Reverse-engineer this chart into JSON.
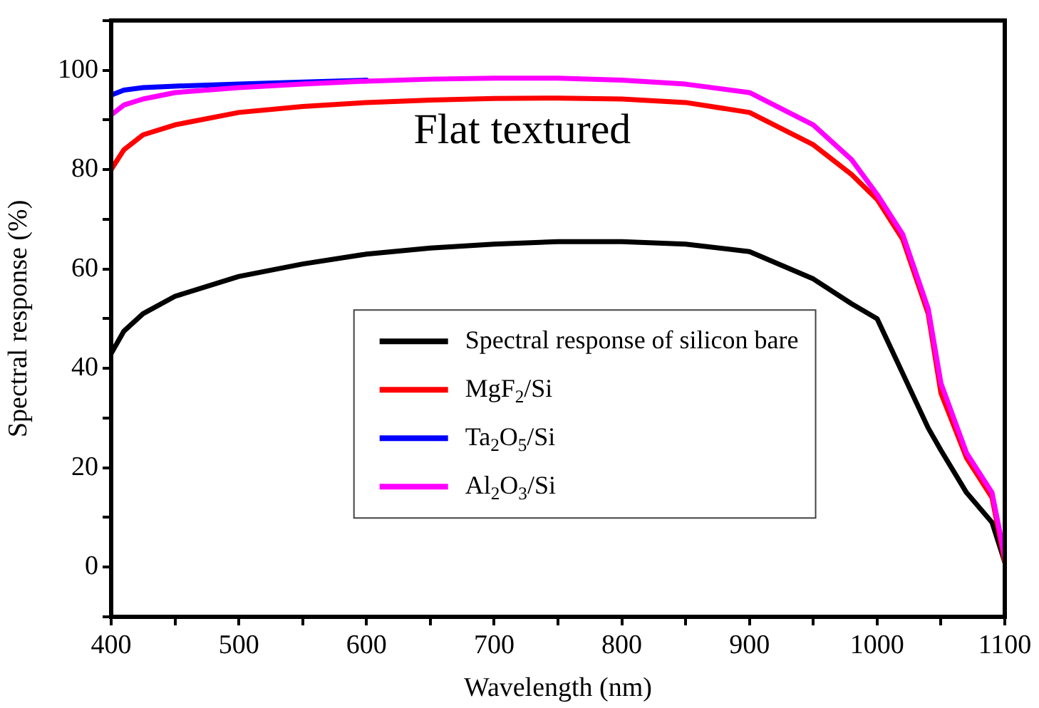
{
  "chart_data": {
    "type": "line",
    "xlabel": "Wavelength (nm)",
    "ylabel": "Spectral response (%)",
    "annotations": [
      "Flat textured"
    ],
    "xlim": [
      400,
      1100
    ],
    "ylim": [
      -10,
      110
    ],
    "xticks": [
      400,
      {
        "value": 450,
        "label": null
      },
      500,
      {
        "value": 550,
        "label": null
      },
      600,
      {
        "value": 650,
        "label": null
      },
      700,
      {
        "value": 750,
        "label": null
      },
      800,
      {
        "value": 850,
        "label": null
      },
      900,
      {
        "value": 950,
        "label": null
      },
      1000,
      {
        "value": 1050,
        "label": null
      },
      1100
    ],
    "yticks": [
      {
        "value": -10,
        "label": null
      },
      0,
      {
        "value": 10,
        "label": null
      },
      20,
      {
        "value": 30,
        "label": null
      },
      40,
      {
        "value": 50,
        "label": null
      },
      60,
      {
        "value": 70,
        "label": null
      },
      80,
      {
        "value": 90,
        "label": null
      },
      100,
      {
        "value": 110,
        "label": null
      }
    ],
    "grid": false,
    "legend": "center",
    "marker": "none",
    "line_style": "solid",
    "x": [
      400,
      410,
      425,
      450,
      500,
      550,
      600,
      650,
      700,
      750,
      800,
      850,
      900,
      950,
      980,
      1000,
      1020,
      1040,
      1050,
      1070,
      1090,
      1100
    ],
    "series": [
      {
        "name": "Spectral response of silicon bare",
        "color": "#000000",
        "values": [
          43,
          47.5,
          51,
          54.5,
          58.5,
          61,
          63,
          64.2,
          65,
          65.5,
          65.5,
          65,
          63.5,
          58,
          53,
          50,
          39,
          28,
          23.5,
          15,
          9,
          1
        ]
      },
      {
        "name": "MgF$_{2}$/Si",
        "color": "#ff0000",
        "values": [
          80,
          84,
          87,
          89,
          91.5,
          92.7,
          93.5,
          94,
          94.3,
          94.4,
          94.2,
          93.5,
          91.5,
          85,
          79,
          74,
          66,
          51,
          35,
          22,
          14,
          1
        ]
      },
      {
        "name": "Ta$_{2}$O$_{5}$/Si",
        "color": "#0000ff",
        "values": [
          95,
          96,
          96.5,
          96.8,
          97.2,
          97.6,
          98,
          null,
          null,
          null,
          null,
          null,
          null,
          null,
          null,
          null,
          null,
          null,
          null,
          null,
          null,
          null
        ]
      },
      {
        "name": "Al$_{2}$O$_{3}$/Si",
        "color": "#ff00ff",
        "values": [
          91,
          93,
          94.2,
          95.5,
          96.5,
          97.2,
          97.8,
          98.2,
          98.4,
          98.4,
          98,
          97.2,
          95.5,
          89,
          82,
          75,
          67,
          52,
          37,
          23,
          15,
          2
        ]
      }
    ]
  }
}
